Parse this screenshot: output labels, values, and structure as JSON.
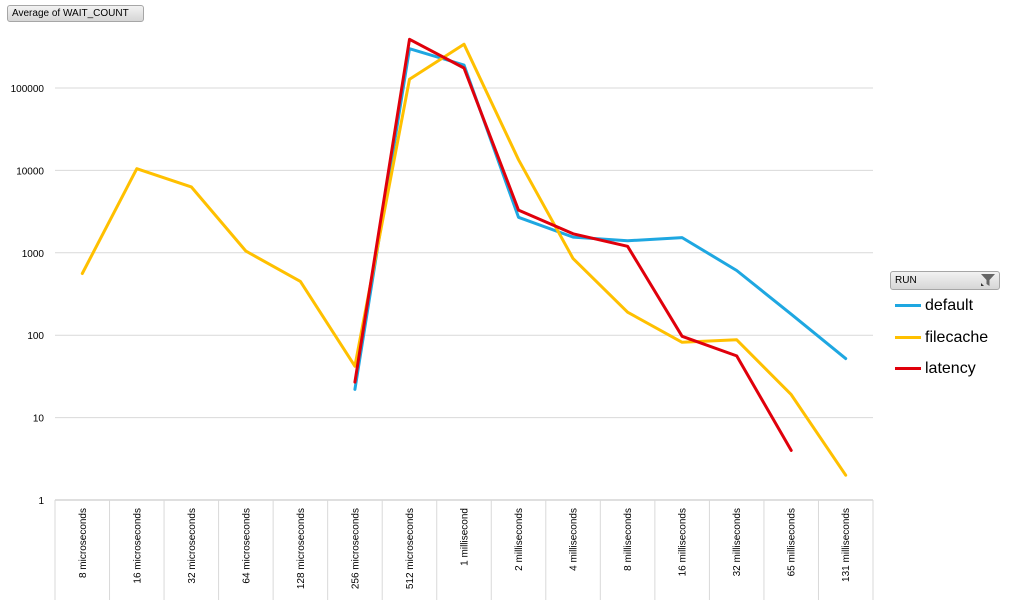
{
  "field_button": {
    "label": "Average of WAIT_COUNT"
  },
  "legend": {
    "title": "RUN",
    "items": [
      {
        "name": "default",
        "color": "#1EA7E1"
      },
      {
        "name": "filecache",
        "color": "#FFC000"
      },
      {
        "name": "latency",
        "color": "#E0000B"
      }
    ]
  },
  "chart_data": {
    "type": "line",
    "yscale": "log",
    "ylim": [
      1,
      1000000
    ],
    "yticks": [
      {
        "value": 1,
        "label": "1"
      },
      {
        "value": 10,
        "label": "10"
      },
      {
        "value": 100,
        "label": "100"
      },
      {
        "value": 1000,
        "label": "1000"
      },
      {
        "value": 10000,
        "label": "10000"
      },
      {
        "value": 100000,
        "label": "100000"
      }
    ],
    "grid": true,
    "legend_position": "right",
    "categories": [
      "8 microseconds",
      "16 microseconds",
      "32 microseconds",
      "64 microseconds",
      "128 microseconds",
      "256 microseconds",
      "512 microseconds",
      "1 millisecond",
      "2 milliseconds",
      "4 milliseconds",
      "8 milliseconds",
      "16 milliseconds",
      "32 milliseconds",
      "65 milliseconds",
      "131 milliseconds"
    ],
    "series": [
      {
        "name": "default",
        "color": "#1EA7E1",
        "values": [
          null,
          null,
          null,
          null,
          null,
          22,
          300000,
          190000,
          2700,
          1550,
          1400,
          1530,
          610,
          180,
          52
        ]
      },
      {
        "name": "filecache",
        "color": "#FFC000",
        "values": [
          560,
          10500,
          6300,
          1050,
          450,
          42,
          128000,
          340000,
          13500,
          850,
          190,
          82,
          88,
          19,
          2
        ]
      },
      {
        "name": "latency",
        "color": "#E0000B",
        "values": [
          null,
          null,
          null,
          null,
          null,
          27,
          390000,
          175000,
          3300,
          1700,
          1200,
          97,
          56,
          4,
          null
        ]
      }
    ]
  }
}
